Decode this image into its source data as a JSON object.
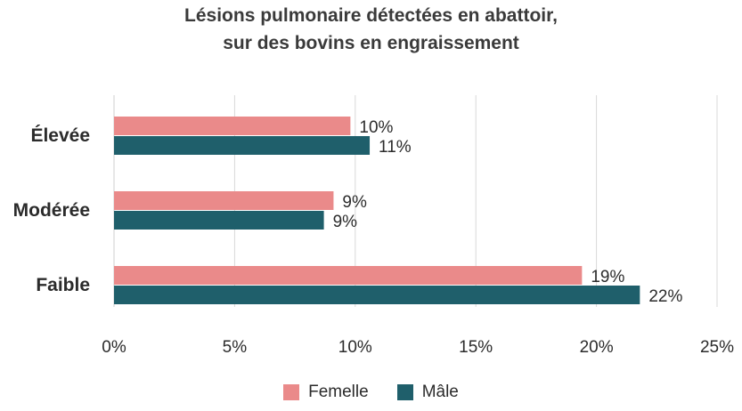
{
  "chart_data": {
    "type": "bar",
    "orientation": "horizontal",
    "title": "Lésions pulmonaire détectées en abattoir,\nsur des bovins en engraissement",
    "categories": [
      "Élevée",
      "Modérée",
      "Faible"
    ],
    "series": [
      {
        "name": "Femelle",
        "color": "#ea8a8a",
        "values": [
          9.8,
          9.1,
          19.4
        ],
        "labels": [
          "10%",
          "9%",
          "19%"
        ]
      },
      {
        "name": "Mâle",
        "color": "#1f5f6b",
        "values": [
          10.6,
          8.7,
          21.8
        ],
        "labels": [
          "11%",
          "9%",
          "22%"
        ]
      }
    ],
    "xlim": [
      0,
      25
    ],
    "x_ticks": [
      0,
      5,
      10,
      15,
      20,
      25
    ],
    "x_tick_labels": [
      "0%",
      "5%",
      "10%",
      "15%",
      "20%",
      "25%"
    ],
    "grid": "vertical",
    "legend_position": "bottom",
    "xlabel": "",
    "ylabel": ""
  }
}
